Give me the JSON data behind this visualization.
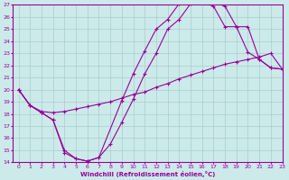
{
  "xlabel": "Windchill (Refroidissement éolien,°C)",
  "bg_color": "#cceaea",
  "grid_color": "#aacccc",
  "line_color": "#990099",
  "xmin": -0.5,
  "xmax": 23,
  "ymin": 14,
  "ymax": 27,
  "line1_x": [
    0,
    1,
    2,
    3,
    4,
    5,
    6,
    7,
    8,
    9,
    10,
    11,
    12,
    13,
    14,
    15,
    16,
    17,
    18,
    19,
    20,
    21,
    22,
    23
  ],
  "line1_y": [
    20.0,
    18.7,
    18.1,
    17.5,
    14.8,
    14.3,
    14.1,
    14.4,
    15.5,
    17.3,
    19.2,
    21.3,
    23.0,
    25.0,
    25.8,
    27.1,
    27.2,
    27.2,
    26.9,
    25.2,
    23.1,
    22.5,
    21.8,
    21.7
  ],
  "line2_x": [
    0,
    1,
    2,
    3,
    4,
    5,
    6,
    7,
    8,
    9,
    10,
    11,
    12,
    13,
    14,
    15,
    16,
    17,
    18,
    19,
    20,
    21,
    22,
    23
  ],
  "line2_y": [
    20.0,
    18.7,
    18.2,
    18.1,
    18.2,
    18.4,
    18.6,
    18.8,
    19.0,
    19.3,
    19.6,
    19.8,
    20.2,
    20.5,
    20.9,
    21.2,
    21.5,
    21.8,
    22.1,
    22.3,
    22.5,
    22.7,
    23.0,
    21.7
  ],
  "line3_x": [
    0,
    1,
    2,
    3,
    4,
    5,
    6,
    7,
    9,
    10,
    11,
    12,
    13,
    14,
    15,
    16,
    17,
    18,
    19,
    20,
    21,
    22,
    23
  ],
  "line3_y": [
    20.0,
    18.7,
    18.1,
    17.5,
    15.0,
    14.3,
    14.1,
    14.4,
    19.1,
    21.3,
    23.2,
    25.0,
    25.8,
    27.1,
    27.2,
    27.2,
    26.9,
    25.2,
    25.2,
    25.2,
    22.5,
    21.8,
    21.7
  ],
  "yticks": [
    14,
    15,
    16,
    17,
    18,
    19,
    20,
    21,
    22,
    23,
    24,
    25,
    26,
    27
  ],
  "xticks": [
    0,
    1,
    2,
    3,
    4,
    5,
    6,
    7,
    8,
    9,
    10,
    11,
    12,
    13,
    14,
    15,
    16,
    17,
    18,
    19,
    20,
    21,
    22,
    23
  ]
}
